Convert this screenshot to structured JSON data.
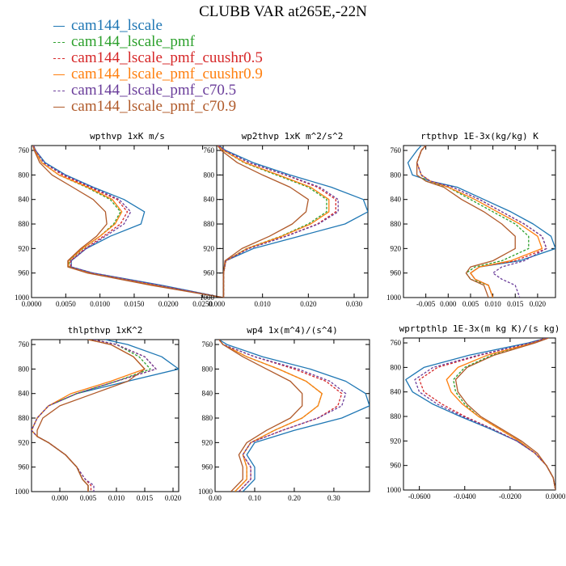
{
  "title": "CLUBB VAR at265E,-22N",
  "legend": [
    {
      "label": "cam144_lscale",
      "color": "#1f77b4",
      "dash": false
    },
    {
      "label": "cam144_lscale_pmf",
      "color": "#2ca02c",
      "dash": true
    },
    {
      "label": "cam144_lscale_pmf_cuushr0.5",
      "color": "#d62728",
      "dash": true
    },
    {
      "label": "cam144_lscale_pmf_cuushr0.9",
      "color": "#ff7f0e",
      "dash": false
    },
    {
      "label": "cam144_lscale_pmf_c70.5",
      "color": "#6a3d9a",
      "dash": true
    },
    {
      "label": "cam144_lscale_pmf_c70.9",
      "color": "#b05a2a",
      "dash": false
    }
  ],
  "chart_data": [
    {
      "type": "line",
      "title": "wpthvp  1xK m/s",
      "xlim": [
        0,
        0.028
      ],
      "ylim": [
        1000,
        752
      ],
      "xticks": [
        0,
        0.005,
        0.01,
        0.015,
        0.02,
        0.025
      ],
      "xticklabels": [
        "0.0000",
        "0.0050",
        "0.0100",
        "0.0150",
        "0.0200",
        "0.0250"
      ],
      "yticks": [
        760,
        800,
        840,
        880,
        920,
        960,
        1000
      ],
      "levels": [
        752,
        760,
        780,
        800,
        820,
        840,
        860,
        880,
        900,
        920,
        940,
        950,
        960,
        980,
        1000
      ],
      "series": [
        {
          "name": "cam144_lscale",
          "values": [
            0.0003,
            0.0006,
            0.002,
            0.005,
            0.009,
            0.0135,
            0.0165,
            0.016,
            0.0115,
            0.008,
            0.0058,
            0.0058,
            0.009,
            0.019,
            0.028
          ]
        },
        {
          "name": "cam144_lscale_pmf",
          "values": [
            0.0003,
            0.0005,
            0.0015,
            0.004,
            0.008,
            0.0115,
            0.013,
            0.012,
            0.01,
            0.0075,
            0.0055,
            0.0055,
            0.0085,
            0.018,
            0.028
          ]
        },
        {
          "name": "cam144_lscale_pmf_cuushr0.5",
          "values": [
            0.0003,
            0.0006,
            0.0018,
            0.0045,
            0.0085,
            0.0125,
            0.014,
            0.013,
            0.0105,
            0.0078,
            0.0057,
            0.0057,
            0.0088,
            0.0185,
            0.028
          ]
        },
        {
          "name": "cam144_lscale_pmf_cuushr0.9",
          "values": [
            0.0003,
            0.0005,
            0.0015,
            0.004,
            0.0082,
            0.0118,
            0.0132,
            0.0122,
            0.01,
            0.0074,
            0.0054,
            0.0054,
            0.0085,
            0.018,
            0.028
          ]
        },
        {
          "name": "cam144_lscale_pmf_c70.5",
          "values": [
            0.0003,
            0.0006,
            0.0018,
            0.0048,
            0.0088,
            0.0128,
            0.0145,
            0.0135,
            0.0108,
            0.008,
            0.0058,
            0.0058,
            0.009,
            0.0187,
            0.028
          ]
        },
        {
          "name": "cam144_lscale_pmf_c70.9",
          "values": [
            0.0002,
            0.0004,
            0.0012,
            0.003,
            0.006,
            0.009,
            0.0108,
            0.011,
            0.0095,
            0.0072,
            0.0053,
            0.0053,
            0.0082,
            0.0175,
            0.028
          ]
        }
      ]
    },
    {
      "type": "line",
      "title": "wp2thvp  1xK m^2/s^2",
      "xlim": [
        0,
        0.033
      ],
      "ylim": [
        1000,
        752
      ],
      "xticks": [
        0,
        0.01,
        0.02,
        0.03
      ],
      "xticklabels": [
        "0.000",
        "0.010",
        "0.020",
        "0.030"
      ],
      "yticks": [
        760,
        800,
        840,
        880,
        920,
        960,
        1000
      ],
      "levels": [
        752,
        760,
        780,
        800,
        820,
        840,
        860,
        880,
        900,
        920,
        940,
        960,
        980,
        1000
      ],
      "series": [
        {
          "name": "cam144_lscale",
          "values": [
            0.0005,
            0.002,
            0.008,
            0.016,
            0.025,
            0.032,
            0.033,
            0.028,
            0.018,
            0.008,
            0.002,
            0.0015,
            0.0015,
            0.0015
          ]
        },
        {
          "name": "cam144_lscale_pmf",
          "values": [
            0.0003,
            0.0015,
            0.006,
            0.013,
            0.02,
            0.024,
            0.024,
            0.02,
            0.014,
            0.0065,
            0.002,
            0.0015,
            0.0015,
            0.0015
          ]
        },
        {
          "name": "cam144_lscale_pmf_cuushr0.5",
          "values": [
            0.0004,
            0.0018,
            0.007,
            0.015,
            0.022,
            0.026,
            0.026,
            0.022,
            0.015,
            0.007,
            0.002,
            0.0015,
            0.0015,
            0.0015
          ]
        },
        {
          "name": "cam144_lscale_pmf_cuushr0.9",
          "values": [
            0.0003,
            0.0015,
            0.0062,
            0.0135,
            0.0205,
            0.0245,
            0.0245,
            0.0205,
            0.0142,
            0.0066,
            0.002,
            0.0015,
            0.0015,
            0.0015
          ]
        },
        {
          "name": "cam144_lscale_pmf_c70.5",
          "values": [
            0.0004,
            0.0018,
            0.0072,
            0.0152,
            0.0225,
            0.0265,
            0.0265,
            0.0222,
            0.0152,
            0.007,
            0.002,
            0.0015,
            0.0015,
            0.0015
          ]
        },
        {
          "name": "cam144_lscale_pmf_c70.9",
          "values": [
            0.0002,
            0.001,
            0.0045,
            0.01,
            0.016,
            0.02,
            0.0195,
            0.0165,
            0.0115,
            0.0055,
            0.0018,
            0.0015,
            0.0015,
            0.0015
          ]
        }
      ]
    },
    {
      "type": "line",
      "title": "rtpthvp  1E-3x(kg/kg) K",
      "xlim": [
        -0.01,
        0.024
      ],
      "ylim": [
        1000,
        752
      ],
      "xticks": [
        -0.005,
        0.0,
        0.005,
        0.01,
        0.015,
        0.02
      ],
      "xticklabels": [
        "-0.005",
        "0.000",
        "0.005",
        "0.010",
        "0.015",
        "0.020"
      ],
      "yticks": [
        760,
        800,
        840,
        880,
        920,
        960,
        1000
      ],
      "levels": [
        752,
        760,
        780,
        800,
        810,
        820,
        840,
        860,
        880,
        900,
        920,
        940,
        950,
        960,
        970,
        980,
        1000
      ],
      "series": [
        {
          "name": "cam144_lscale",
          "values": [
            -0.006,
            -0.007,
            -0.009,
            -0.008,
            -0.004,
            0.002,
            0.008,
            0.014,
            0.019,
            0.023,
            0.024,
            0.016,
            0.007,
            0.005,
            0.006,
            0.009,
            0.01
          ]
        },
        {
          "name": "cam144_lscale_pmf",
          "values": [
            -0.005,
            -0.006,
            -0.007,
            -0.006,
            -0.005,
            0.0,
            0.005,
            0.01,
            0.015,
            0.018,
            0.018,
            0.012,
            0.006,
            0.004,
            0.005,
            0.009,
            0.01
          ]
        },
        {
          "name": "cam144_lscale_pmf_cuushr0.5",
          "values": [
            -0.005,
            -0.006,
            -0.007,
            -0.006,
            -0.004,
            0.001,
            0.007,
            0.012,
            0.017,
            0.021,
            0.022,
            0.015,
            0.007,
            0.005,
            0.006,
            0.009,
            0.01
          ]
        },
        {
          "name": "cam144_lscale_pmf_cuushr0.9",
          "values": [
            -0.005,
            -0.006,
            -0.007,
            -0.006,
            -0.004,
            0.0,
            0.006,
            0.011,
            0.016,
            0.02,
            0.021,
            0.014,
            0.007,
            0.005,
            0.006,
            0.009,
            0.01
          ]
        },
        {
          "name": "cam144_lscale_pmf_c70.5",
          "values": [
            -0.005,
            -0.006,
            -0.007,
            -0.006,
            -0.004,
            0.001,
            0.007,
            0.012,
            0.017,
            0.021,
            0.022,
            0.017,
            0.012,
            0.01,
            0.012,
            0.015,
            0.016
          ]
        },
        {
          "name": "cam144_lscale_pmf_c70.9",
          "values": [
            -0.005,
            -0.006,
            -0.007,
            -0.007,
            -0.005,
            -0.001,
            0.003,
            0.008,
            0.012,
            0.015,
            0.015,
            0.01,
            0.005,
            0.004,
            0.005,
            0.008,
            0.009
          ]
        }
      ]
    },
    {
      "type": "line",
      "title": "thlpthvp  1xK^2",
      "xlim": [
        -0.005,
        0.021
      ],
      "ylim": [
        1000,
        752
      ],
      "xticks": [
        0.0,
        0.005,
        0.01,
        0.015,
        0.02
      ],
      "xticklabels": [
        "0.000",
        "0.005",
        "0.010",
        "0.015",
        "0.020"
      ],
      "yticks": [
        760,
        800,
        840,
        880,
        920,
        960,
        1000
      ],
      "levels": [
        752,
        760,
        780,
        800,
        820,
        840,
        860,
        880,
        900,
        910,
        920,
        940,
        960,
        980,
        990,
        1000
      ],
      "series": [
        {
          "name": "cam144_lscale",
          "values": [
            0.008,
            0.012,
            0.018,
            0.021,
            0.012,
            0.003,
            -0.002,
            -0.004,
            -0.005,
            -0.004,
            -0.002,
            0.001,
            0.003,
            0.004,
            0.005,
            0.005
          ]
        },
        {
          "name": "cam144_lscale_pmf",
          "values": [
            0.006,
            0.01,
            0.014,
            0.016,
            0.01,
            0.003,
            -0.002,
            -0.004,
            -0.005,
            -0.004,
            -0.002,
            0.001,
            0.003,
            0.004,
            0.005,
            0.005
          ]
        },
        {
          "name": "cam144_lscale_pmf_cuushr0.5",
          "values": [
            0.006,
            0.01,
            0.015,
            0.017,
            0.01,
            0.003,
            -0.002,
            -0.004,
            -0.005,
            -0.004,
            -0.002,
            0.001,
            0.003,
            0.0045,
            0.0055,
            0.0055
          ]
        },
        {
          "name": "cam144_lscale_pmf_cuushr0.9",
          "values": [
            0.005,
            0.009,
            0.013,
            0.015,
            0.009,
            0.002,
            -0.002,
            -0.004,
            -0.005,
            -0.004,
            -0.002,
            0.001,
            0.003,
            0.004,
            0.005,
            0.005
          ]
        },
        {
          "name": "cam144_lscale_pmf_c70.5",
          "values": [
            0.006,
            0.01,
            0.015,
            0.017,
            0.01,
            0.003,
            -0.002,
            -0.004,
            -0.005,
            -0.004,
            -0.002,
            0.001,
            0.003,
            0.0045,
            0.006,
            0.006
          ]
        },
        {
          "name": "cam144_lscale_pmf_c70.9",
          "values": [
            0.005,
            0.009,
            0.013,
            0.015,
            0.012,
            0.006,
            0.0,
            -0.003,
            -0.004,
            -0.004,
            -0.002,
            0.001,
            0.003,
            0.004,
            0.005,
            0.005
          ]
        }
      ]
    },
    {
      "type": "line",
      "title": "wp4  1x(m^4)/(s^4)",
      "xlim": [
        0,
        0.39
      ],
      "ylim": [
        1000,
        752
      ],
      "xticks": [
        0.0,
        0.1,
        0.2,
        0.3
      ],
      "xticklabels": [
        "0.00",
        "0.10",
        "0.20",
        "0.30"
      ],
      "yticks": [
        760,
        800,
        840,
        880,
        920,
        960,
        1000
      ],
      "levels": [
        752,
        760,
        780,
        800,
        820,
        840,
        860,
        880,
        900,
        920,
        940,
        960,
        980,
        1000
      ],
      "series": [
        {
          "name": "cam144_lscale",
          "values": [
            0.01,
            0.03,
            0.12,
            0.24,
            0.33,
            0.38,
            0.39,
            0.32,
            0.2,
            0.1,
            0.08,
            0.1,
            0.1,
            0.07
          ]
        },
        {
          "name": "cam144_lscale_pmf",
          "values": [
            0.01,
            0.02,
            0.08,
            0.16,
            0.23,
            0.27,
            0.26,
            0.22,
            0.15,
            0.09,
            0.07,
            0.08,
            0.08,
            0.05
          ]
        },
        {
          "name": "cam144_lscale_pmf_cuushr0.5",
          "values": [
            0.01,
            0.02,
            0.1,
            0.2,
            0.28,
            0.32,
            0.31,
            0.26,
            0.17,
            0.09,
            0.07,
            0.09,
            0.09,
            0.06
          ]
        },
        {
          "name": "cam144_lscale_pmf_cuushr0.9",
          "values": [
            0.01,
            0.02,
            0.08,
            0.16,
            0.23,
            0.27,
            0.26,
            0.22,
            0.15,
            0.09,
            0.07,
            0.08,
            0.08,
            0.05
          ]
        },
        {
          "name": "cam144_lscale_pmf_c70.5",
          "values": [
            0.01,
            0.02,
            0.1,
            0.21,
            0.29,
            0.33,
            0.32,
            0.26,
            0.17,
            0.09,
            0.07,
            0.09,
            0.09,
            0.06
          ]
        },
        {
          "name": "cam144_lscale_pmf_c70.9",
          "values": [
            0.01,
            0.02,
            0.07,
            0.13,
            0.19,
            0.22,
            0.22,
            0.19,
            0.13,
            0.08,
            0.06,
            0.07,
            0.07,
            0.04
          ]
        }
      ]
    },
    {
      "type": "line",
      "title": "wprtpthlp  1E-3x(m kg K)/(s kg)",
      "xlim": [
        -0.067,
        0.0
      ],
      "ylim": [
        1000,
        752
      ],
      "xticks": [
        -0.06,
        -0.04,
        -0.02,
        0.0
      ],
      "xticklabels": [
        "-0.0600",
        "-0.0400",
        "-0.0200",
        "0.0000"
      ],
      "yticks": [
        760,
        800,
        840,
        880,
        920,
        960,
        1000
      ],
      "levels": [
        752,
        760,
        780,
        800,
        820,
        840,
        860,
        880,
        900,
        920,
        940,
        960,
        980,
        1000
      ],
      "series": [
        {
          "name": "cam144_lscale",
          "values": [
            -0.004,
            -0.012,
            -0.038,
            -0.058,
            -0.066,
            -0.063,
            -0.054,
            -0.042,
            -0.029,
            -0.017,
            -0.009,
            -0.004,
            -0.001,
            0.0
          ]
        },
        {
          "name": "cam144_lscale_pmf",
          "values": [
            -0.004,
            -0.01,
            -0.028,
            -0.04,
            -0.045,
            -0.044,
            -0.04,
            -0.034,
            -0.025,
            -0.016,
            -0.009,
            -0.004,
            -0.001,
            0.0
          ]
        },
        {
          "name": "cam144_lscale_pmf_cuushr0.5",
          "values": [
            -0.004,
            -0.011,
            -0.033,
            -0.052,
            -0.06,
            -0.058,
            -0.05,
            -0.04,
            -0.028,
            -0.017,
            -0.009,
            -0.004,
            -0.001,
            0.0
          ]
        },
        {
          "name": "cam144_lscale_pmf_cuushr0.9",
          "values": [
            -0.004,
            -0.01,
            -0.03,
            -0.043,
            -0.048,
            -0.046,
            -0.041,
            -0.034,
            -0.025,
            -0.016,
            -0.009,
            -0.004,
            -0.001,
            0.0
          ]
        },
        {
          "name": "cam144_lscale_pmf_c70.5",
          "values": [
            -0.004,
            -0.011,
            -0.034,
            -0.054,
            -0.062,
            -0.06,
            -0.052,
            -0.041,
            -0.028,
            -0.017,
            -0.009,
            -0.004,
            -0.001,
            0.0
          ]
        },
        {
          "name": "cam144_lscale_pmf_c70.9",
          "values": [
            -0.003,
            -0.009,
            -0.027,
            -0.039,
            -0.044,
            -0.043,
            -0.039,
            -0.033,
            -0.024,
            -0.015,
            -0.008,
            -0.004,
            -0.001,
            0.0
          ]
        }
      ]
    }
  ]
}
